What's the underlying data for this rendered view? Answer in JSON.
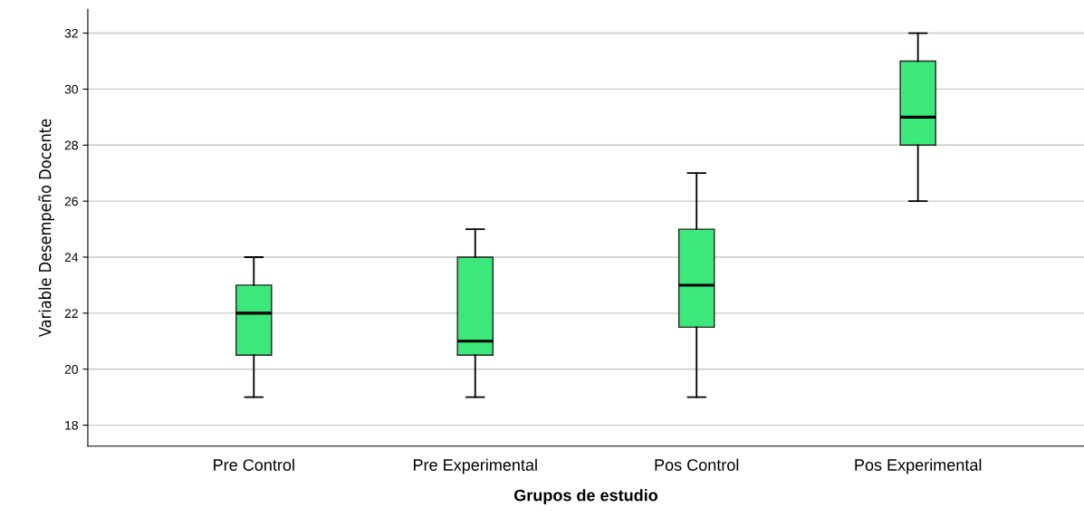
{
  "chart_data": {
    "type": "box",
    "xlabel": "Grupos de estudio",
    "ylabel": "Variable Desempeño Docente",
    "categories": [
      "Pre Control",
      "Pre Experimental",
      "Pos Control",
      "Pos Experimental"
    ],
    "boxes": [
      {
        "low": 19,
        "q1": 20.5,
        "median": 22,
        "q3": 23,
        "high": 24
      },
      {
        "low": 19,
        "q1": 20.5,
        "median": 21,
        "q3": 24,
        "high": 25
      },
      {
        "low": 19,
        "q1": 21.5,
        "median": 23,
        "q3": 25,
        "high": 27
      },
      {
        "low": 26,
        "q1": 28,
        "median": 29,
        "q3": 31,
        "high": 32
      }
    ],
    "color": "#3de87a",
    "ylim": [
      17.25,
      32.85
    ],
    "yticks": [
      18,
      20,
      22,
      24,
      26,
      28,
      30,
      32
    ],
    "grid": "y"
  }
}
